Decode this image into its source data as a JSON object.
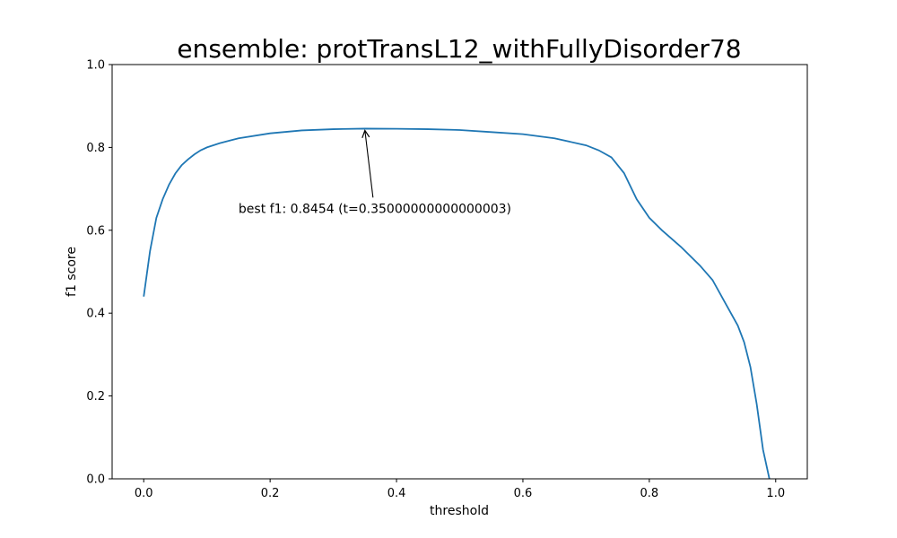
{
  "chart_data": {
    "type": "line",
    "title": "ensemble: protTransL12_withFullyDisorder78",
    "xlabel": "threshold",
    "ylabel": "f1 score",
    "xlim": [
      -0.05,
      1.05
    ],
    "ylim": [
      0.0,
      1.0
    ],
    "xticks": [
      0.0,
      0.2,
      0.4,
      0.6,
      0.8,
      1.0
    ],
    "xtick_labels": [
      "0.0",
      "0.2",
      "0.4",
      "0.6",
      "0.8",
      "1.0"
    ],
    "yticks": [
      0.0,
      0.2,
      0.4,
      0.6,
      0.8,
      1.0
    ],
    "ytick_labels": [
      "0.0",
      "0.2",
      "0.4",
      "0.6",
      "0.8",
      "1.0"
    ],
    "grid": false,
    "line_color": "#1f77b4",
    "series": [
      {
        "x": [
          0.0,
          0.01,
          0.02,
          0.03,
          0.04,
          0.05,
          0.06,
          0.07,
          0.08,
          0.09,
          0.1,
          0.12,
          0.15,
          0.2,
          0.25,
          0.3,
          0.35,
          0.4,
          0.45,
          0.5,
          0.55,
          0.6,
          0.65,
          0.7,
          0.72,
          0.74,
          0.76,
          0.78,
          0.8,
          0.82,
          0.85,
          0.88,
          0.9,
          0.92,
          0.94,
          0.95,
          0.96,
          0.97,
          0.98,
          0.99,
          1.0
        ],
        "values": [
          0.44,
          0.55,
          0.63,
          0.675,
          0.71,
          0.737,
          0.757,
          0.771,
          0.783,
          0.793,
          0.8,
          0.81,
          0.822,
          0.834,
          0.841,
          0.844,
          0.8454,
          0.845,
          0.844,
          0.842,
          0.837,
          0.832,
          0.822,
          0.805,
          0.793,
          0.776,
          0.738,
          0.675,
          0.63,
          0.6,
          0.56,
          0.515,
          0.48,
          0.425,
          0.37,
          0.33,
          0.27,
          0.18,
          0.07,
          0.0,
          -0.04
        ]
      }
    ],
    "annotation": {
      "text": "best f1: 0.8454 (t=0.35000000000000003)",
      "point": [
        0.35,
        0.8454
      ],
      "text_pos": [
        0.15,
        0.653
      ]
    }
  }
}
